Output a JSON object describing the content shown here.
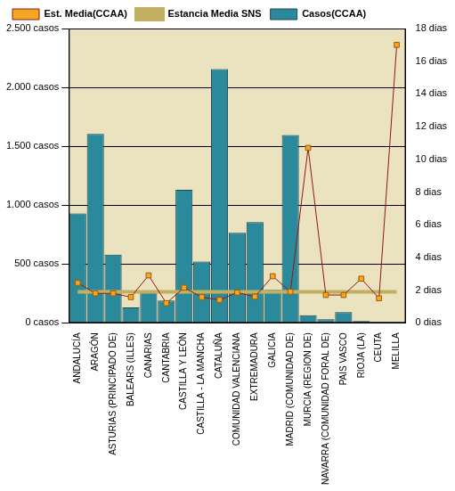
{
  "chart_data": {
    "type": "bar",
    "categories": [
      "ANDALUCÍA",
      "ARAGÓN",
      "ASTURIAS (PRINCIPADO DE)",
      "BALEARS (ILLES)",
      "CANARIAS",
      "CANTABRIA",
      "CASTILLA Y LEÓN",
      "CASTILLA - LA MANCHA",
      "CATALUÑA",
      "COMUNIDAD VALENCIANA",
      "EXTREMADURA",
      "GALICIA",
      "MADRID (COMUNIDAD DE)",
      "MURCIA (REGION DE)",
      "NAVARRA (COMUNIDAD FORAL DE)",
      "PAIS VASCO",
      "RIOJA (LA)",
      "CEUTA",
      "MELILLA"
    ],
    "series": [
      {
        "name": "Casos(CCAA)",
        "type": "bar",
        "color": "#2a8a9c",
        "values": [
          930,
          1605,
          580,
          130,
          260,
          190,
          1130,
          520,
          2155,
          765,
          855,
          280,
          1595,
          65,
          30,
          90,
          15,
          5,
          2
        ]
      },
      {
        "name": "Est. Media(CCAA)",
        "type": "line",
        "axis": "y2",
        "color": "#8b1a1a",
        "marker": "square",
        "line_style": "solid",
        "values": [
          2.44,
          1.8,
          1.8,
          1.57,
          2.9,
          1.2,
          2.15,
          1.57,
          1.4,
          1.85,
          1.6,
          2.85,
          1.9,
          10.7,
          1.7,
          1.7,
          2.7,
          1.5,
          17.0
        ]
      },
      {
        "name": "Estancia Media SNS",
        "type": "line",
        "axis": "y2",
        "color": "#c2b060",
        "marker": "none",
        "line_style": "solid",
        "values": [
          1.9,
          1.9,
          1.9,
          1.9,
          1.9,
          1.9,
          1.9,
          1.9,
          1.9,
          1.9,
          1.9,
          1.9,
          1.9,
          1.9,
          1.9,
          1.9,
          1.9,
          1.9,
          1.9
        ]
      }
    ],
    "ylim": [
      0,
      2500
    ],
    "yticks": [
      {
        "value": 0,
        "label": "0 casos"
      },
      {
        "value": 500,
        "label": "500 casos"
      },
      {
        "value": 1000,
        "label": "1.000 casos"
      },
      {
        "value": 1500,
        "label": "1.500 casos"
      },
      {
        "value": 2000,
        "label": "2.000 casos"
      },
      {
        "value": 2500,
        "label": "2.500 casos"
      }
    ],
    "y2lim": [
      0,
      18
    ],
    "y2ticks": [
      {
        "value": 0,
        "label": "0 dias"
      },
      {
        "value": 2,
        "label": "2 dias"
      },
      {
        "value": 4,
        "label": "4 dias"
      },
      {
        "value": 6,
        "label": "6 dias"
      },
      {
        "value": 8,
        "label": "8 dias"
      },
      {
        "value": 10,
        "label": "10 dias"
      },
      {
        "value": 12,
        "label": "12 dias"
      },
      {
        "value": 14,
        "label": "14 dias"
      },
      {
        "value": 16,
        "label": "16 dias"
      },
      {
        "value": 18,
        "label": "18 dias"
      }
    ],
    "grid": true,
    "legend": "top"
  }
}
